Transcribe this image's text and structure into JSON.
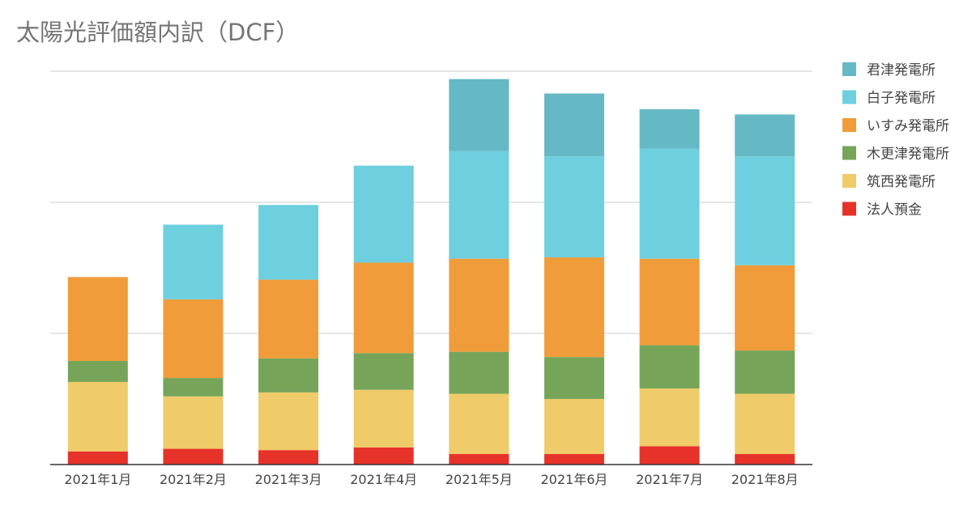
{
  "chart_data": {
    "type": "bar",
    "stacked": true,
    "title": "太陽光評価額内訳（DCF）",
    "xlabel": "",
    "ylabel": "",
    "ylim": [
      0,
      3
    ],
    "gridlines": [
      1,
      2,
      3
    ],
    "y_tick_labels_shown": false,
    "legend_position": "right",
    "categories": [
      "2021年1月",
      "2021年2月",
      "2021年3月",
      "2021年4月",
      "2021年5月",
      "2021年6月",
      "2021年7月",
      "2021年8月"
    ],
    "series": [
      {
        "name": "法人預金",
        "color": "#e63228",
        "values": [
          0.1,
          0.12,
          0.11,
          0.13,
          0.08,
          0.08,
          0.14,
          0.08
        ]
      },
      {
        "name": "筑西発電所",
        "color": "#f0cb69",
        "values": [
          0.53,
          0.4,
          0.44,
          0.44,
          0.46,
          0.42,
          0.44,
          0.46
        ]
      },
      {
        "name": "木更津発電所",
        "color": "#76a55a",
        "values": [
          0.16,
          0.14,
          0.26,
          0.28,
          0.32,
          0.32,
          0.33,
          0.33
        ]
      },
      {
        "name": "いすみ発電所",
        "color": "#f09c3a",
        "values": [
          0.64,
          0.6,
          0.6,
          0.69,
          0.71,
          0.76,
          0.66,
          0.65
        ]
      },
      {
        "name": "白子発電所",
        "color": "#6ecfdf",
        "values": [
          0.0,
          0.57,
          0.57,
          0.74,
          0.82,
          0.77,
          0.84,
          0.83
        ]
      },
      {
        "name": "君津発電所",
        "color": "#64b9c4",
        "values": [
          0.0,
          0.0,
          0.0,
          0.0,
          0.55,
          0.48,
          0.3,
          0.32
        ]
      }
    ]
  },
  "legend_order": [
    "君津発電所",
    "白子発電所",
    "いすみ発電所",
    "木更津発電所",
    "筑西発電所",
    "法人預金"
  ]
}
